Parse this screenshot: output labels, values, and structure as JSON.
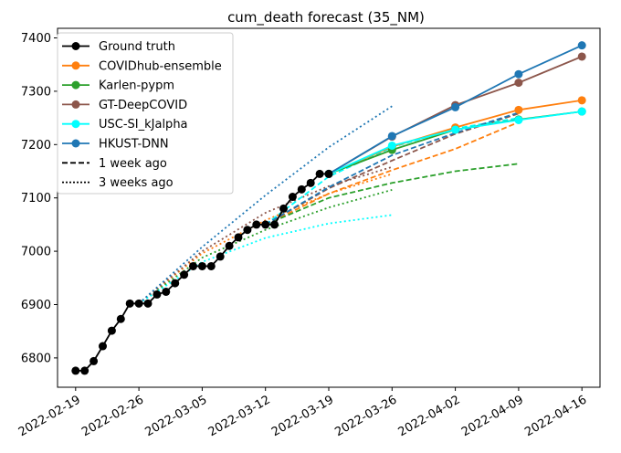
{
  "chart_data": {
    "type": "line",
    "title": "cum_death forecast (35_NM)",
    "xlabel": "",
    "ylabel": "",
    "x_ticks": [
      "2022-02-19",
      "2022-02-26",
      "2022-03-05",
      "2022-03-12",
      "2022-03-19",
      "2022-03-26",
      "2022-04-02",
      "2022-04-09",
      "2022-04-16"
    ],
    "y_ticks": [
      6800,
      6900,
      7000,
      7100,
      7200,
      7300,
      7400
    ],
    "xlim": [
      "2022-02-17",
      "2022-04-18"
    ],
    "ylim": [
      6745,
      7418
    ],
    "grid": false,
    "legend_position": "top-left",
    "legend": [
      {
        "label": "Ground truth",
        "color": "#000000",
        "style": "solid",
        "marker": true
      },
      {
        "label": "COVIDhub-ensemble",
        "color": "#ff7f0e",
        "style": "solid",
        "marker": true
      },
      {
        "label": "Karlen-pypm",
        "color": "#2ca02c",
        "style": "solid",
        "marker": true
      },
      {
        "label": "GT-DeepCOVID",
        "color": "#8c564b",
        "style": "solid",
        "marker": true
      },
      {
        "label": "USC-SI_kJalpha",
        "color": "#00ffff",
        "style": "solid",
        "marker": true
      },
      {
        "label": "HKUST-DNN",
        "color": "#1f77b4",
        "style": "solid",
        "marker": true
      },
      {
        "label": "1 week ago",
        "color": "#000000",
        "style": "dashed",
        "marker": false
      },
      {
        "label": "3 weeks ago",
        "color": "#000000",
        "style": "dotted",
        "marker": false
      }
    ],
    "ground_truth": {
      "name": "Ground truth",
      "color": "#000000",
      "x": [
        "2022-02-19",
        "2022-02-20",
        "2022-02-21",
        "2022-02-22",
        "2022-02-23",
        "2022-02-24",
        "2022-02-25",
        "2022-02-26",
        "2022-02-27",
        "2022-02-28",
        "2022-03-01",
        "2022-03-02",
        "2022-03-03",
        "2022-03-04",
        "2022-03-05",
        "2022-03-06",
        "2022-03-07",
        "2022-03-08",
        "2022-03-09",
        "2022-03-10",
        "2022-03-11",
        "2022-03-12",
        "2022-03-13",
        "2022-03-14",
        "2022-03-15",
        "2022-03-16",
        "2022-03-17",
        "2022-03-18",
        "2022-03-19"
      ],
      "y": [
        6776,
        6776,
        6794,
        6822,
        6851,
        6873,
        6902,
        6902,
        6902,
        6919,
        6924,
        6940,
        6956,
        6972,
        6972,
        6972,
        6990,
        7010,
        7026,
        7040,
        7050,
        7050,
        7050,
        7080,
        7102,
        7116,
        7128,
        7145,
        7145
      ]
    },
    "forecasts": [
      {
        "name": "COVIDhub-ensemble",
        "color": "#ff7f0e",
        "x": [
          "2022-03-19",
          "2022-03-26",
          "2022-04-02",
          "2022-04-09",
          "2022-04-16"
        ],
        "y": [
          7145,
          7196,
          7232,
          7265,
          7283
        ]
      },
      {
        "name": "Karlen-pypm",
        "color": "#2ca02c",
        "x": [
          "2022-03-19",
          "2022-03-26",
          "2022-04-02",
          "2022-04-09",
          "2022-04-16"
        ],
        "y": [
          7145,
          7190,
          7228,
          7247,
          7262
        ]
      },
      {
        "name": "GT-DeepCOVID",
        "color": "#8c564b",
        "x": [
          "2022-03-19",
          "2022-03-26",
          "2022-04-02",
          "2022-04-09",
          "2022-04-16"
        ],
        "y": [
          7145,
          7215,
          7274,
          7316,
          7365
        ]
      },
      {
        "name": "USC-SI_kJalpha",
        "color": "#00ffff",
        "x": [
          "2022-03-19",
          "2022-03-26",
          "2022-04-02",
          "2022-04-09",
          "2022-04-16"
        ],
        "y": [
          7145,
          7198,
          7228,
          7246,
          7262
        ]
      },
      {
        "name": "HKUST-DNN",
        "color": "#1f77b4",
        "x": [
          "2022-03-19",
          "2022-03-26",
          "2022-04-02",
          "2022-04-09",
          "2022-04-16"
        ],
        "y": [
          7145,
          7216,
          7270,
          7332,
          7386
        ]
      }
    ],
    "one_week_ago": [
      {
        "color": "#ff7f0e",
        "x": [
          "2022-03-12",
          "2022-03-19",
          "2022-03-26",
          "2022-04-02",
          "2022-04-09"
        ],
        "y": [
          7050,
          7108,
          7152,
          7192,
          7242
        ]
      },
      {
        "color": "#2ca02c",
        "x": [
          "2022-03-12",
          "2022-03-19",
          "2022-03-26",
          "2022-04-02",
          "2022-04-09"
        ],
        "y": [
          7050,
          7100,
          7128,
          7150,
          7164
        ]
      },
      {
        "color": "#8c564b",
        "x": [
          "2022-03-12",
          "2022-03-19",
          "2022-03-26",
          "2022-04-02",
          "2022-04-09"
        ],
        "y": [
          7050,
          7118,
          7170,
          7220,
          7258
        ]
      },
      {
        "color": "#00ffff",
        "x": [
          "2022-03-12",
          "2022-03-19",
          "2022-03-26",
          "2022-04-02",
          "2022-04-09"
        ],
        "y": [
          7050,
          7140,
          7195,
          7230,
          7250
        ]
      },
      {
        "color": "#1f77b4",
        "x": [
          "2022-03-12",
          "2022-03-19",
          "2022-03-26",
          "2022-04-02",
          "2022-04-09"
        ],
        "y": [
          7050,
          7120,
          7180,
          7222,
          7260
        ]
      }
    ],
    "three_weeks_ago": [
      {
        "color": "#ff7f0e",
        "x": [
          "2022-02-26",
          "2022-03-05",
          "2022-03-12",
          "2022-03-19",
          "2022-03-26"
        ],
        "y": [
          6902,
          6996,
          7058,
          7108,
          7145
        ]
      },
      {
        "color": "#2ca02c",
        "x": [
          "2022-02-26",
          "2022-03-05",
          "2022-03-12",
          "2022-03-19",
          "2022-03-26"
        ],
        "y": [
          6902,
          6988,
          7040,
          7082,
          7115
        ]
      },
      {
        "color": "#8c564b",
        "x": [
          "2022-02-26",
          "2022-03-05",
          "2022-03-12",
          "2022-03-19",
          "2022-03-26"
        ],
        "y": [
          6902,
          7000,
          7072,
          7122,
          7158
        ]
      },
      {
        "color": "#00ffff",
        "x": [
          "2022-02-26",
          "2022-03-05",
          "2022-03-12",
          "2022-03-19",
          "2022-03-26"
        ],
        "y": [
          6902,
          6980,
          7025,
          7052,
          7068
        ]
      },
      {
        "color": "#1f77b4",
        "x": [
          "2022-02-26",
          "2022-03-05",
          "2022-03-12",
          "2022-03-19",
          "2022-03-26"
        ],
        "y": [
          6902,
          7008,
          7105,
          7195,
          7272
        ]
      }
    ]
  }
}
